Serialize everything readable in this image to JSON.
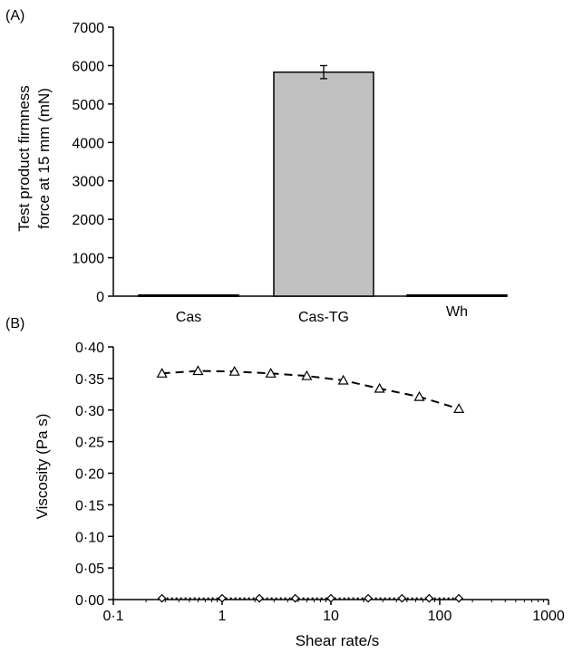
{
  "chart_data": [
    {
      "panel_label": "(A)",
      "type": "bar",
      "categories": [
        "Cas",
        "Cas-TG",
        "Wh"
      ],
      "values": [
        30,
        5830,
        30
      ],
      "error": [
        0,
        170,
        0
      ],
      "ylabel": [
        "Test product firmness",
        "force at 15 mm (mN)"
      ],
      "xlabel": "",
      "ylim": [
        0,
        7000
      ],
      "yticks": [
        0,
        1000,
        2000,
        3000,
        4000,
        5000,
        6000,
        7000
      ],
      "ytick_labels": [
        "0",
        "1000",
        "2000",
        "3000",
        "4000",
        "5000",
        "6000",
        "7000"
      ],
      "bar_color": "#c0c0c0",
      "grid": false,
      "legend": "none"
    },
    {
      "panel_label": "(B)",
      "type": "line",
      "xscale": "log",
      "xlim": [
        0.1,
        1000
      ],
      "ylim": [
        0,
        0.4
      ],
      "xticks": [
        0.1,
        1,
        10,
        100,
        1000
      ],
      "xtick_labels": [
        "0·1",
        "1",
        "10",
        "100",
        "1000"
      ],
      "yticks": [
        0,
        0.05,
        0.1,
        0.15,
        0.2,
        0.25,
        0.3,
        0.35,
        0.4
      ],
      "ytick_labels": [
        "0·00",
        "0·05",
        "0·10",
        "0·15",
        "0·20",
        "0·25",
        "0·30",
        "0·35",
        "0·40"
      ],
      "xlabel": "Shear rate/s",
      "ylabel": "Viscosity (Pa s)",
      "grid": false,
      "legend": "none",
      "series": [
        {
          "marker": "triangle",
          "line_style": "dashed",
          "x": [
            0.28,
            0.6,
            1.3,
            2.8,
            6.0,
            13,
            28,
            65,
            150
          ],
          "y": [
            0.358,
            0.362,
            0.361,
            0.358,
            0.354,
            0.347,
            0.334,
            0.321,
            0.302
          ]
        },
        {
          "marker": "diamond",
          "line_style": "dotted",
          "x": [
            0.28,
            1.0,
            2.2,
            4.7,
            10,
            22,
            45,
            80,
            150
          ],
          "y": [
            0.002,
            0.002,
            0.002,
            0.002,
            0.002,
            0.002,
            0.002,
            0.002,
            0.002
          ]
        }
      ]
    }
  ]
}
